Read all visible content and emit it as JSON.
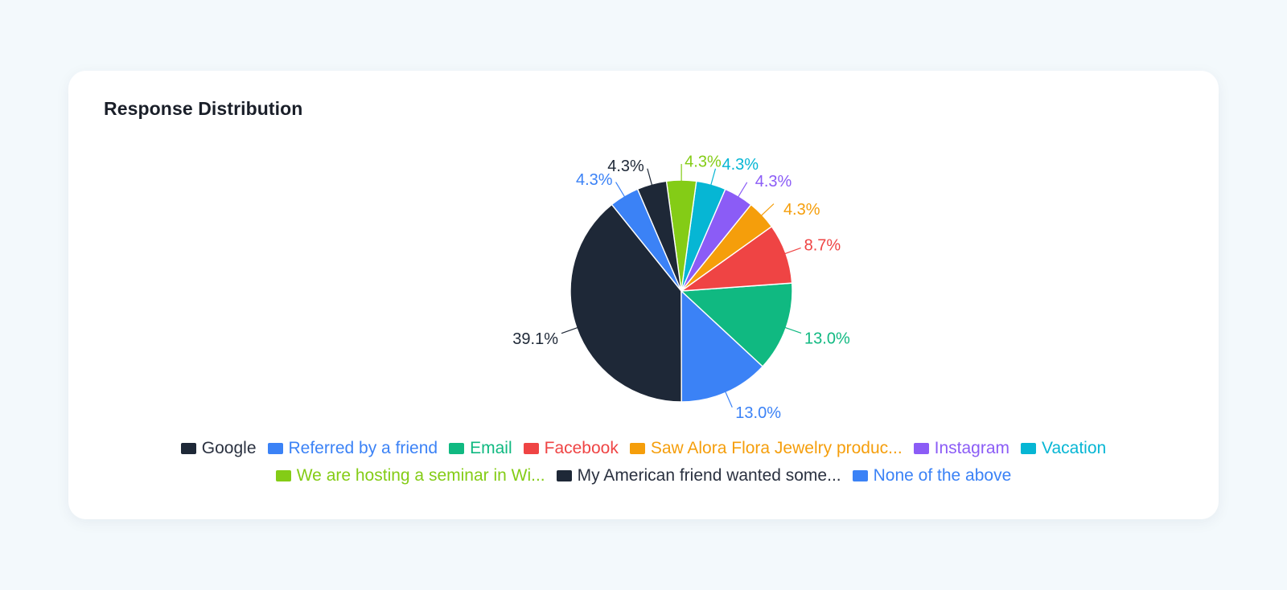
{
  "card": {
    "title": "Response Distribution"
  },
  "chart_data": {
    "type": "pie",
    "title": "Response Distribution",
    "legend_position": "bottom",
    "slices": [
      {
        "label": "Google",
        "value": 39.1,
        "display": "39.1%",
        "color": "#1e2837"
      },
      {
        "label": "Referred by a friend",
        "value": 13.0,
        "display": "13.0%",
        "color": "#3b82f6"
      },
      {
        "label": "Email",
        "value": 13.0,
        "display": "13.0%",
        "color": "#10b981"
      },
      {
        "label": "Facebook",
        "value": 8.7,
        "display": "8.7%",
        "color": "#ef4444"
      },
      {
        "label": "Saw Alora Flora Jewelry produc...",
        "value": 4.3,
        "display": "4.3%",
        "color": "#f59e0b"
      },
      {
        "label": "Instagram",
        "value": 4.3,
        "display": "4.3%",
        "color": "#8b5cf6"
      },
      {
        "label": "Vacation",
        "value": 4.3,
        "display": "4.3%",
        "color": "#06b6d4"
      },
      {
        "label": "We are hosting a seminar in Wi...",
        "value": 4.3,
        "display": "4.3%",
        "color": "#84cc16"
      },
      {
        "label": "My American friend wanted some...",
        "value": 4.3,
        "display": "4.3%",
        "color": "#1e2837"
      },
      {
        "label": "None of the above",
        "value": 4.3,
        "display": "4.3%",
        "color": "#3b82f6"
      }
    ]
  }
}
